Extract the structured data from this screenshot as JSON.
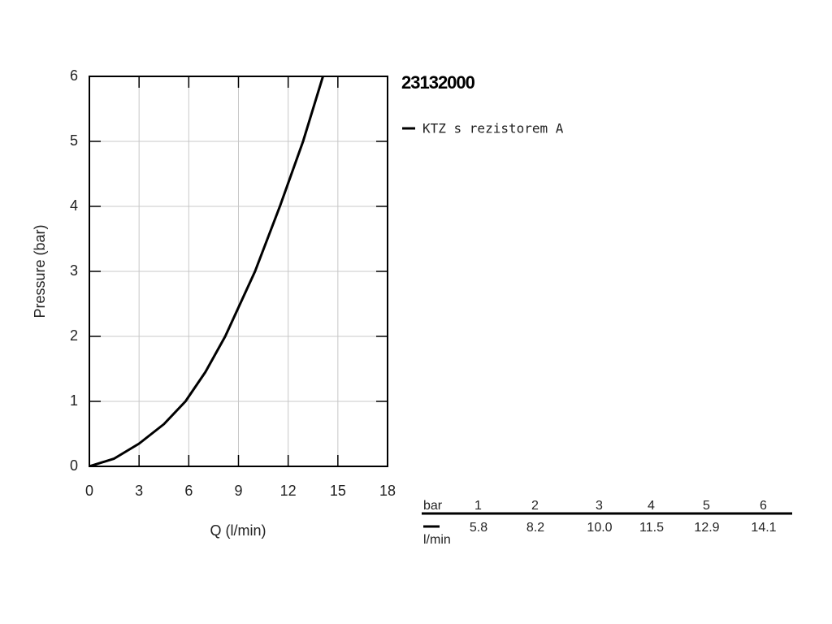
{
  "chart_data": {
    "type": "line",
    "title": "23132000",
    "xlabel": "Q (l/min)",
    "ylabel": "Pressure (bar)",
    "series": [
      {
        "name": "KTZ s rezistorem A",
        "color": "#000000",
        "x": [
          0,
          1.5,
          3,
          4.5,
          5.8,
          7,
          8.2,
          10,
          11.5,
          12.9,
          14.1
        ],
        "values": [
          0,
          0.12,
          0.35,
          0.65,
          1,
          1.45,
          2,
          3,
          4,
          5,
          6
        ]
      }
    ],
    "xlim": [
      0,
      18
    ],
    "ylim": [
      0,
      6
    ],
    "xticks": [
      0,
      3,
      6,
      9,
      12,
      15,
      18
    ],
    "yticks": [
      0,
      1,
      2,
      3,
      4,
      5,
      6
    ],
    "grid": true
  },
  "table": {
    "pressure_unit": "bar",
    "flow_unit": "l/min",
    "pressures": [
      1,
      2,
      3,
      4,
      5,
      6
    ],
    "flows": [
      "5.8",
      "8.2",
      "10.0",
      "11.5",
      "12.9",
      "14.1"
    ]
  }
}
